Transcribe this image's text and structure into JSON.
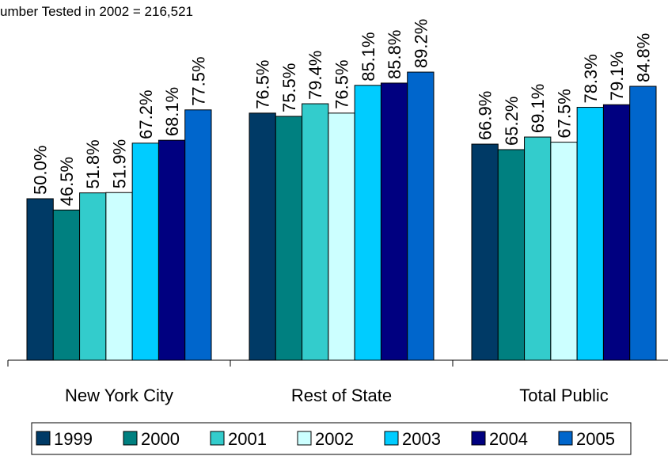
{
  "chart_data": {
    "type": "bar",
    "subtitle": "umber Tested in 2002 = 216,521",
    "categories": [
      "New York City",
      "Rest of State",
      "Total Public"
    ],
    "series": [
      {
        "name": "1999",
        "color": "#003a66",
        "values": [
          50.0,
          76.5,
          66.9
        ],
        "value_labels": [
          "50.0%",
          "76.5%",
          "66.9%"
        ]
      },
      {
        "name": "2000",
        "color": "#008080",
        "values": [
          46.5,
          75.5,
          65.2
        ],
        "value_labels": [
          "46.5%",
          "75.5%",
          "65.2%"
        ]
      },
      {
        "name": "2001",
        "color": "#33cccc",
        "values": [
          51.8,
          79.4,
          69.1
        ],
        "value_labels": [
          "51.8%",
          "79.4%",
          "69.1%"
        ]
      },
      {
        "name": "2002",
        "color": "#ccffff",
        "values": [
          51.9,
          76.5,
          67.5
        ],
        "value_labels": [
          "51.9%",
          "76.5%",
          "67.5%"
        ]
      },
      {
        "name": "2003",
        "color": "#00ccff",
        "values": [
          67.2,
          85.1,
          78.3
        ],
        "value_labels": [
          "67.2%",
          "85.1%",
          "78.3%"
        ]
      },
      {
        "name": "2004",
        "color": "#000080",
        "values": [
          68.1,
          85.8,
          79.1
        ],
        "value_labels": [
          "68.1%",
          "85.8%",
          "79.1%"
        ]
      },
      {
        "name": "2005",
        "color": "#0066cc",
        "values": [
          77.5,
          89.2,
          84.8
        ],
        "value_labels": [
          "77.5%",
          "89.2%",
          "84.8%"
        ]
      }
    ],
    "ylim": [
      0,
      100
    ]
  }
}
